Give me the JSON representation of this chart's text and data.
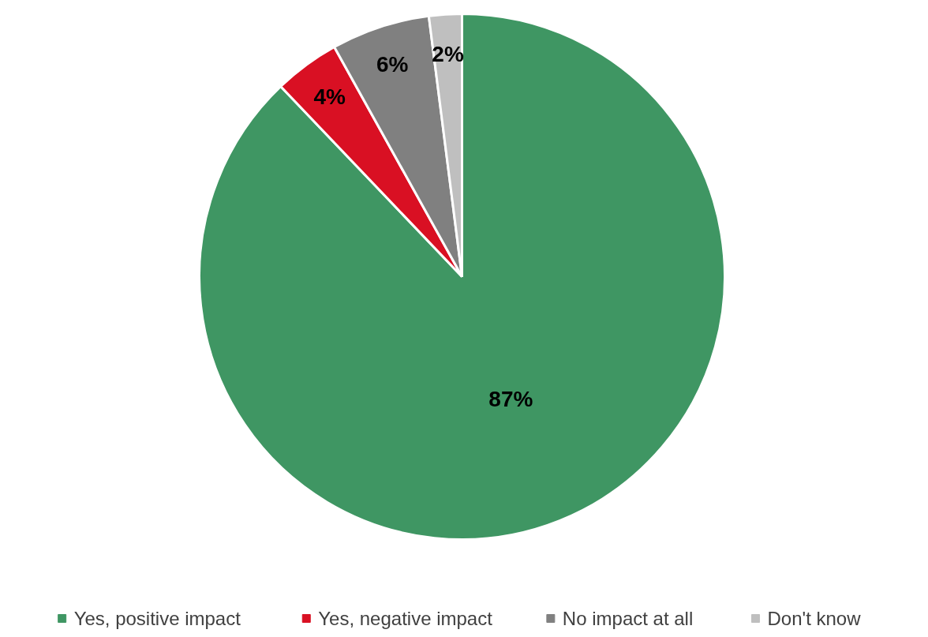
{
  "chart_data": {
    "type": "pie",
    "categories": [
      "Yes, positive impact",
      "Yes, negative impact",
      "No impact at all",
      "Don't know"
    ],
    "values": [
      87,
      4,
      6,
      2
    ],
    "colors": [
      "#3f9663",
      "#d91023",
      "#808080",
      "#bfbfbf"
    ],
    "value_labels": [
      "87%",
      "4%",
      "6%",
      "2%"
    ],
    "legend": "bottom"
  }
}
